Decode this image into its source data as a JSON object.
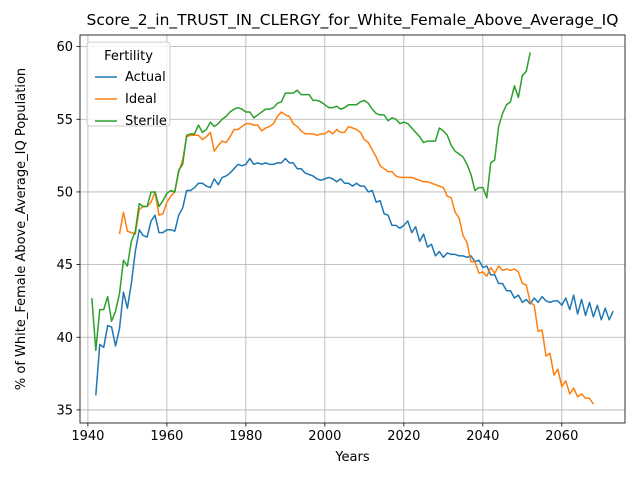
{
  "chart_data": {
    "type": "line",
    "title": "Score_2_in_TRUST_IN_CLERGY_for_White_Female_Above_Average_IQ",
    "xlabel": "Years",
    "ylabel": "% of White_Female Above_Average_IQ Population",
    "xlim": [
      1938,
      2076
    ],
    "ylim": [
      34.1,
      60.8
    ],
    "xticks": [
      1940,
      1960,
      1980,
      2000,
      2020,
      2040,
      2060
    ],
    "yticks": [
      35,
      40,
      45,
      50,
      55,
      60
    ],
    "grid": true,
    "legend": {
      "title": "Fertility",
      "placement": "top-left"
    },
    "series": [
      {
        "name": "Actual",
        "color": "#1f77b4",
        "x_start": 1942,
        "values": [
          36.0,
          39.5,
          39.3,
          40.8,
          40.7,
          39.4,
          40.6,
          43.1,
          42.0,
          43.7,
          45.9,
          47.4,
          47.0,
          46.9,
          48.0,
          48.4,
          47.2,
          47.2,
          47.4,
          47.4,
          47.3,
          48.4,
          48.9,
          50.1,
          50.1,
          50.3,
          50.6,
          50.6,
          50.4,
          50.3,
          50.9,
          50.5,
          51.0,
          51.1,
          51.3,
          51.6,
          51.9,
          51.8,
          51.9,
          52.3,
          51.9,
          52.0,
          51.9,
          52.0,
          51.9,
          51.9,
          52.0,
          52.0,
          52.3,
          52.0,
          52.0,
          51.6,
          51.6,
          51.3,
          51.2,
          51.1,
          50.9,
          50.8,
          50.9,
          51.0,
          50.9,
          50.7,
          50.9,
          50.6,
          50.6,
          50.4,
          50.6,
          50.4,
          50.4,
          50.0,
          50.1,
          49.3,
          49.4,
          48.5,
          48.4,
          47.7,
          47.7,
          47.5,
          47.7,
          48.0,
          47.2,
          47.6,
          46.6,
          47.1,
          46.2,
          46.4,
          45.6,
          45.9,
          45.5,
          45.8,
          45.7,
          45.7,
          45.6,
          45.6,
          45.5,
          45.6,
          45.2,
          45.3,
          44.8,
          44.9,
          44.3,
          44.3,
          43.7,
          43.7,
          43.2,
          43.2,
          42.7,
          42.9,
          42.4,
          42.6,
          42.3,
          42.7,
          42.4,
          42.8,
          42.5,
          42.4,
          42.5,
          42.5,
          42.2,
          42.7,
          41.9,
          42.9,
          41.6,
          42.6,
          41.5,
          42.4,
          41.4,
          42.2,
          41.2,
          42.0,
          41.2,
          41.8
        ]
      },
      {
        "name": "Ideal",
        "color": "#ff7f0e",
        "x_start": 1948,
        "values": [
          47.1,
          48.6,
          47.3,
          47.2,
          47.1,
          48.8,
          49.0,
          49.0,
          49.3,
          50.0,
          48.4,
          48.5,
          49.3,
          49.7,
          50.0,
          51.4,
          52.2,
          53.8,
          53.9,
          53.9,
          53.9,
          53.6,
          53.8,
          54.1,
          52.8,
          53.2,
          53.5,
          53.4,
          53.8,
          54.3,
          54.3,
          54.5,
          54.7,
          54.7,
          54.6,
          54.6,
          54.2,
          54.4,
          54.5,
          54.7,
          55.2,
          55.5,
          55.3,
          55.2,
          54.7,
          54.5,
          54.2,
          54.0,
          54.0,
          54.0,
          53.9,
          54.0,
          54.0,
          54.2,
          54.0,
          54.3,
          54.1,
          54.1,
          54.5,
          54.4,
          54.3,
          54.1,
          53.6,
          53.4,
          52.9,
          52.4,
          51.8,
          51.6,
          51.4,
          51.4,
          51.1,
          51.0,
          51.0,
          51.0,
          51.0,
          50.9,
          50.8,
          50.7,
          50.7,
          50.6,
          50.5,
          50.4,
          50.3,
          49.7,
          49.6,
          48.6,
          48.2,
          47.0,
          46.5,
          45.2,
          45.2,
          44.4,
          44.5,
          44.2,
          44.8,
          44.4,
          44.9,
          44.6,
          44.7,
          44.6,
          44.7,
          44.5,
          43.7,
          43.6,
          42.4,
          42.2,
          40.4,
          40.5,
          38.7,
          38.9,
          37.4,
          37.8,
          36.6,
          37.0,
          36.1,
          36.5,
          35.9,
          36.1,
          35.8,
          35.8,
          35.4
        ]
      },
      {
        "name": "Sterile",
        "color": "#2ca02c",
        "x_start": 1941,
        "values": [
          42.7,
          39.1,
          41.9,
          41.9,
          42.8,
          41.1,
          41.8,
          43.0,
          45.3,
          44.9,
          46.6,
          47.3,
          49.2,
          49.0,
          49.0,
          50.0,
          50.0,
          49.0,
          49.4,
          49.9,
          50.1,
          50.0,
          51.5,
          51.9,
          53.9,
          54.0,
          54.0,
          54.6,
          54.1,
          54.3,
          54.8,
          54.5,
          54.7,
          55.0,
          55.2,
          55.5,
          55.7,
          55.8,
          55.7,
          55.5,
          55.5,
          55.1,
          55.3,
          55.5,
          55.7,
          55.7,
          55.8,
          56.1,
          56.2,
          56.8,
          56.8,
          56.8,
          57.0,
          56.7,
          56.7,
          56.7,
          56.3,
          56.3,
          56.2,
          56.0,
          55.8,
          55.8,
          55.9,
          55.7,
          55.8,
          56.0,
          56.0,
          56.0,
          56.2,
          56.3,
          56.1,
          55.7,
          55.4,
          55.3,
          55.3,
          54.9,
          55.1,
          55.0,
          54.7,
          54.8,
          54.7,
          54.4,
          54.1,
          53.8,
          53.4,
          53.5,
          53.5,
          53.5,
          54.4,
          54.2,
          53.9,
          53.2,
          52.8,
          52.6,
          52.4,
          51.9,
          51.2,
          50.1,
          50.3,
          50.3,
          49.6,
          52.0,
          52.2,
          54.5,
          55.4,
          56.0,
          56.2,
          57.3,
          56.5,
          58.0,
          58.3,
          59.6
        ]
      }
    ]
  }
}
